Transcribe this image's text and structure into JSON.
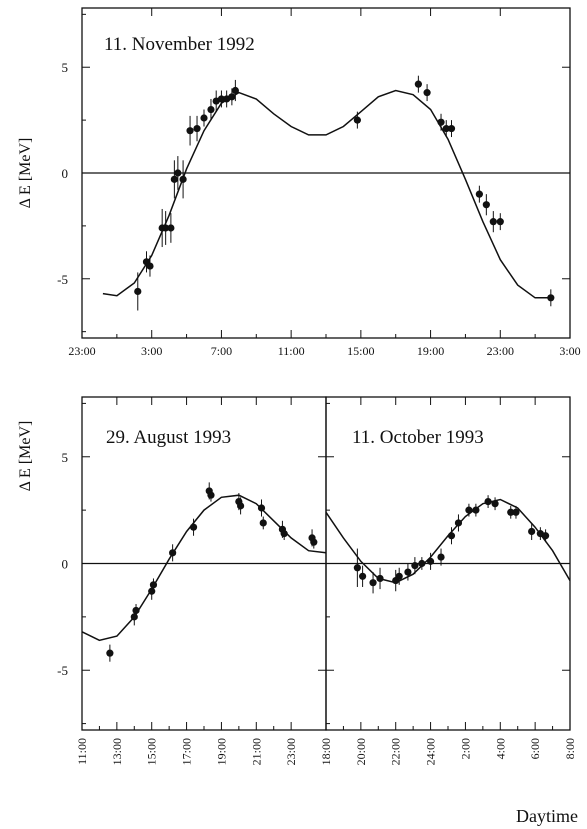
{
  "chart_data": [
    {
      "type": "scatter",
      "title": "11. November 1992",
      "ylabel": "Δ E [MeV]",
      "xlabel": "",
      "xlim": [
        23,
        51
      ],
      "ylim": [
        -7.8,
        7.8
      ],
      "xticks": [
        {
          "v": 23,
          "label": "23:00"
        },
        {
          "v": 27,
          "label": "3:00"
        },
        {
          "v": 31,
          "label": "7:00"
        },
        {
          "v": 35,
          "label": "11:00"
        },
        {
          "v": 39,
          "label": "15:00"
        },
        {
          "v": 43,
          "label": "19:00"
        },
        {
          "v": 47,
          "label": "23:00"
        },
        {
          "v": 51,
          "label": "3:00"
        }
      ],
      "yticks": [
        {
          "v": 5,
          "label": "5"
        },
        {
          "v": 0,
          "label": "0"
        },
        {
          "v": -5,
          "label": "-5"
        }
      ],
      "points": [
        [
          26.2,
          -5.6,
          0.9
        ],
        [
          26.7,
          -4.2,
          0.5
        ],
        [
          26.9,
          -4.4,
          0.5
        ],
        [
          27.6,
          -2.6,
          0.9
        ],
        [
          27.8,
          -2.6,
          0.8
        ],
        [
          28.1,
          -2.6,
          0.7
        ],
        [
          28.3,
          -0.3,
          0.9
        ],
        [
          28.5,
          0.0,
          0.8
        ],
        [
          28.8,
          -0.3,
          0.9
        ],
        [
          29.2,
          2.0,
          0.7
        ],
        [
          29.6,
          2.1,
          0.6
        ],
        [
          30.0,
          2.6,
          0.4
        ],
        [
          30.4,
          3.0,
          0.5
        ],
        [
          30.7,
          3.4,
          0.5
        ],
        [
          31.0,
          3.5,
          0.4
        ],
        [
          31.3,
          3.5,
          0.4
        ],
        [
          31.6,
          3.6,
          0.4
        ],
        [
          31.8,
          3.9,
          0.5
        ],
        [
          38.8,
          2.5,
          0.4
        ],
        [
          42.3,
          4.2,
          0.4
        ],
        [
          42.8,
          3.8,
          0.4
        ],
        [
          43.6,
          2.4,
          0.4
        ],
        [
          43.9,
          2.1,
          0.4
        ],
        [
          44.2,
          2.1,
          0.4
        ],
        [
          45.8,
          -1.0,
          0.4
        ],
        [
          46.2,
          -1.5,
          0.5
        ],
        [
          46.6,
          -2.3,
          0.5
        ],
        [
          47.0,
          -2.3,
          0.4
        ],
        [
          49.9,
          -5.9,
          0.4
        ]
      ],
      "fit": [
        [
          24.2,
          -5.7
        ],
        [
          25.0,
          -5.8
        ],
        [
          26.0,
          -5.2
        ],
        [
          27.0,
          -3.9
        ],
        [
          28.0,
          -2.0
        ],
        [
          29.0,
          0.2
        ],
        [
          30.0,
          2.0
        ],
        [
          31.0,
          3.3
        ],
        [
          32.0,
          3.8
        ],
        [
          33.0,
          3.5
        ],
        [
          34.0,
          2.8
        ],
        [
          35.0,
          2.2
        ],
        [
          36.0,
          1.8
        ],
        [
          37.0,
          1.8
        ],
        [
          38.0,
          2.2
        ],
        [
          39.0,
          2.9
        ],
        [
          40.0,
          3.6
        ],
        [
          41.0,
          3.9
        ],
        [
          42.0,
          3.7
        ],
        [
          43.0,
          3.0
        ],
        [
          44.0,
          1.6
        ],
        [
          45.0,
          -0.3
        ],
        [
          46.0,
          -2.3
        ],
        [
          47.0,
          -4.1
        ],
        [
          48.0,
          -5.3
        ],
        [
          49.0,
          -5.9
        ],
        [
          49.9,
          -5.9
        ]
      ]
    },
    {
      "type": "scatter",
      "title": "29. August 1993",
      "ylabel": "Δ E [MeV]",
      "xlabel": "",
      "xlim": [
        11,
        25
      ],
      "ylim": [
        -7.8,
        7.8
      ],
      "xticks": [
        {
          "v": 11,
          "label": "11:00"
        },
        {
          "v": 13,
          "label": "13:00"
        },
        {
          "v": 15,
          "label": "15:00"
        },
        {
          "v": 17,
          "label": "17:00"
        },
        {
          "v": 19,
          "label": "19:00"
        },
        {
          "v": 21,
          "label": "21:00"
        },
        {
          "v": 23,
          "label": "23:00"
        }
      ],
      "yticks": [
        {
          "v": 5,
          "label": "5"
        },
        {
          "v": 0,
          "label": "0"
        },
        {
          "v": -5,
          "label": "-5"
        }
      ],
      "points": [
        [
          12.6,
          -4.2,
          0.4
        ],
        [
          14.0,
          -2.5,
          0.4
        ],
        [
          14.1,
          -2.2,
          0.3
        ],
        [
          15.0,
          -1.3,
          0.4
        ],
        [
          15.1,
          -1.0,
          0.3
        ],
        [
          16.2,
          0.5,
          0.4
        ],
        [
          17.4,
          1.7,
          0.4
        ],
        [
          18.3,
          3.4,
          0.4
        ],
        [
          18.4,
          3.2,
          0.3
        ],
        [
          20.0,
          2.9,
          0.4
        ],
        [
          20.1,
          2.7,
          0.4
        ],
        [
          21.3,
          2.6,
          0.4
        ],
        [
          21.4,
          1.9,
          0.3
        ],
        [
          22.5,
          1.6,
          0.4
        ],
        [
          22.6,
          1.4,
          0.3
        ],
        [
          24.2,
          1.2,
          0.4
        ],
        [
          24.3,
          1.0,
          0.3
        ]
      ],
      "fit": [
        [
          11.0,
          -3.2
        ],
        [
          12.0,
          -3.6
        ],
        [
          13.0,
          -3.4
        ],
        [
          14.0,
          -2.5
        ],
        [
          15.0,
          -1.2
        ],
        [
          16.0,
          0.2
        ],
        [
          17.0,
          1.5
        ],
        [
          18.0,
          2.5
        ],
        [
          19.0,
          3.1
        ],
        [
          20.0,
          3.2
        ],
        [
          21.0,
          2.8
        ],
        [
          22.0,
          2.0
        ],
        [
          23.0,
          1.2
        ],
        [
          24.0,
          0.6
        ],
        [
          25.0,
          0.5
        ]
      ]
    },
    {
      "type": "scatter",
      "title": "11. October 1993",
      "xlabel": "Daytime",
      "xlim": [
        18,
        32
      ],
      "ylim": [
        -7.8,
        7.8
      ],
      "xticks": [
        {
          "v": 18,
          "label": "18:00"
        },
        {
          "v": 20,
          "label": "20:00"
        },
        {
          "v": 22,
          "label": "22:00"
        },
        {
          "v": 24,
          "label": "24:00"
        },
        {
          "v": 26,
          "label": "2:00"
        },
        {
          "v": 28,
          "label": "4:00"
        },
        {
          "v": 30,
          "label": "6:00"
        },
        {
          "v": 32,
          "label": "8:00"
        }
      ],
      "yticks": [
        {
          "v": 5,
          "label": ""
        },
        {
          "v": 0,
          "label": ""
        },
        {
          "v": -5,
          "label": ""
        }
      ],
      "points": [
        [
          19.8,
          -0.2,
          0.9
        ],
        [
          20.1,
          -0.6,
          0.5
        ],
        [
          20.7,
          -0.9,
          0.5
        ],
        [
          21.1,
          -0.7,
          0.5
        ],
        [
          22.0,
          -0.8,
          0.5
        ],
        [
          22.2,
          -0.6,
          0.4
        ],
        [
          22.7,
          -0.4,
          0.4
        ],
        [
          23.1,
          -0.1,
          0.4
        ],
        [
          23.5,
          0.0,
          0.3
        ],
        [
          24.0,
          0.1,
          0.4
        ],
        [
          24.6,
          0.3,
          0.4
        ],
        [
          25.2,
          1.3,
          0.4
        ],
        [
          25.6,
          1.9,
          0.4
        ],
        [
          26.2,
          2.5,
          0.3
        ],
        [
          26.6,
          2.5,
          0.3
        ],
        [
          27.3,
          2.9,
          0.3
        ],
        [
          27.7,
          2.8,
          0.3
        ],
        [
          28.6,
          2.4,
          0.3
        ],
        [
          28.9,
          2.4,
          0.3
        ],
        [
          29.8,
          1.5,
          0.4
        ],
        [
          30.3,
          1.4,
          0.3
        ],
        [
          30.6,
          1.3,
          0.3
        ]
      ],
      "fit": [
        [
          18.0,
          2.4
        ],
        [
          19.0,
          1.2
        ],
        [
          20.0,
          0.1
        ],
        [
          21.0,
          -0.7
        ],
        [
          22.0,
          -0.9
        ],
        [
          23.0,
          -0.5
        ],
        [
          24.0,
          0.3
        ],
        [
          25.0,
          1.3
        ],
        [
          26.0,
          2.2
        ],
        [
          27.0,
          2.8
        ],
        [
          28.0,
          3.0
        ],
        [
          29.0,
          2.6
        ],
        [
          30.0,
          1.7
        ],
        [
          31.0,
          0.6
        ],
        [
          32.0,
          -0.8
        ]
      ]
    }
  ]
}
